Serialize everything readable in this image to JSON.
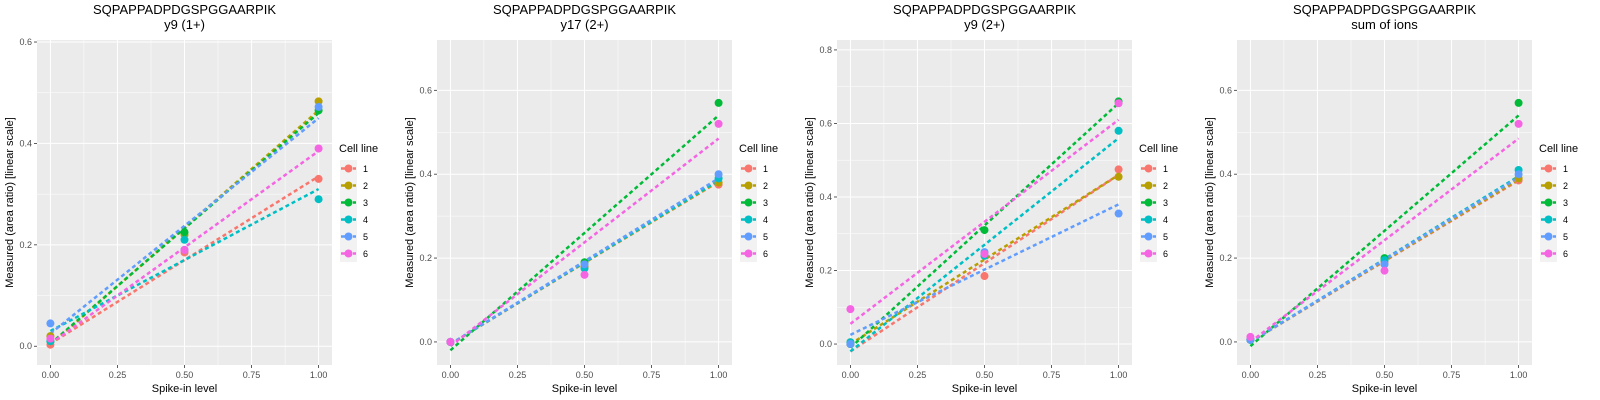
{
  "legend": {
    "title": "Cell line",
    "labels": [
      "1",
      "2",
      "3",
      "4",
      "5",
      "6"
    ]
  },
  "colors": [
    "#F8766D",
    "#B79F00",
    "#00BA38",
    "#00BFC4",
    "#619CFF",
    "#F564E3"
  ],
  "chart_data": [
    {
      "type": "scatter",
      "title": "SQPAPPADPDGSPGGAARPIK",
      "subtitle": "y9 (1+)",
      "xlabel": "Spike-in level",
      "ylabel": "Measured (area ratio) [linear scale]",
      "xlim": [
        -0.05,
        1.05
      ],
      "ylim": [
        -0.037,
        0.604
      ],
      "xticks": [
        0,
        0.25,
        0.5,
        0.75,
        1
      ],
      "xtick_labels": [
        "0.00",
        "0.25",
        "0.50",
        "0.75",
        "1.00"
      ],
      "yticks": [
        0,
        0.2,
        0.4,
        0.6
      ],
      "ytick_labels": [
        "0.0",
        "0.2",
        "0.4",
        "0.6"
      ],
      "grid": true,
      "legend_position": "right",
      "x": [
        0,
        0.5,
        1
      ],
      "series": [
        {
          "name": "1",
          "values": [
            0.003,
            0.185,
            0.33
          ],
          "fit": [
            0.005,
            0.335
          ]
        },
        {
          "name": "2",
          "values": [
            0.02,
            0.22,
            0.483
          ],
          "fit": [
            0.003,
            0.465
          ]
        },
        {
          "name": "3",
          "values": [
            0.01,
            0.225,
            0.465
          ],
          "fit": [
            0.005,
            0.46
          ]
        },
        {
          "name": "4",
          "values": [
            0.01,
            0.21,
            0.29
          ],
          "fit": [
            0.03,
            0.31
          ]
        },
        {
          "name": "5",
          "values": [
            0.045,
            0.19,
            0.472
          ],
          "fit": [
            0.025,
            0.45
          ]
        },
        {
          "name": "6",
          "values": [
            0.015,
            0.19,
            0.39
          ],
          "fit": [
            0.005,
            0.385
          ]
        }
      ]
    },
    {
      "type": "scatter",
      "title": "SQPAPPADPDGSPGGAARPIK",
      "subtitle": "y17 (2+)",
      "xlabel": "Spike-in level",
      "ylabel": "Measured (area ratio) [linear scale]",
      "xlim": [
        -0.05,
        1.05
      ],
      "ylim": [
        -0.055,
        0.72
      ],
      "xticks": [
        0,
        0.25,
        0.5,
        0.75,
        1
      ],
      "xtick_labels": [
        "0.00",
        "0.25",
        "0.50",
        "0.75",
        "1.00"
      ],
      "yticks": [
        0,
        0.2,
        0.4,
        0.6
      ],
      "ytick_labels": [
        "0.0",
        "0.2",
        "0.4",
        "0.6"
      ],
      "grid": true,
      "legend_position": "right",
      "x": [
        0,
        0.5,
        1
      ],
      "series": [
        {
          "name": "1",
          "values": [
            0.0,
            0.18,
            0.375
          ],
          "fit": [
            -0.005,
            0.382
          ]
        },
        {
          "name": "2",
          "values": [
            0.0,
            0.18,
            0.38
          ],
          "fit": [
            -0.005,
            0.383
          ]
        },
        {
          "name": "3",
          "values": [
            0.0,
            0.19,
            0.57
          ],
          "fit": [
            -0.02,
            0.54
          ]
        },
        {
          "name": "4",
          "values": [
            0.0,
            0.175,
            0.39
          ],
          "fit": [
            -0.005,
            0.385
          ]
        },
        {
          "name": "5",
          "values": [
            0.0,
            0.185,
            0.4
          ],
          "fit": [
            -0.005,
            0.39
          ]
        },
        {
          "name": "6",
          "values": [
            0.0,
            0.16,
            0.52
          ],
          "fit": [
            -0.01,
            0.485
          ]
        }
      ]
    },
    {
      "type": "scatter",
      "title": "SQPAPPADPDGSPGGAARPIK",
      "subtitle": "y9 (2+)",
      "xlabel": "Spike-in level",
      "ylabel": "Measured (area ratio) [linear scale]",
      "xlim": [
        -0.05,
        1.05
      ],
      "ylim": [
        -0.057,
        0.827
      ],
      "xticks": [
        0,
        0.25,
        0.5,
        0.75,
        1
      ],
      "xtick_labels": [
        "0.00",
        "0.25",
        "0.50",
        "0.75",
        "1.00"
      ],
      "yticks": [
        0,
        0.2,
        0.4,
        0.6,
        0.8
      ],
      "ytick_labels": [
        "0.0",
        "0.2",
        "0.4",
        "0.6",
        "0.8"
      ],
      "grid": true,
      "legend_position": "right",
      "x": [
        0,
        0.5,
        1
      ],
      "series": [
        {
          "name": "1",
          "values": [
            0.0,
            0.185,
            0.475
          ],
          "fit": [
            -0.02,
            0.46
          ]
        },
        {
          "name": "2",
          "values": [
            0.005,
            0.24,
            0.455
          ],
          "fit": [
            0.0,
            0.46
          ]
        },
        {
          "name": "3",
          "values": [
            0.0,
            0.31,
            0.66
          ],
          "fit": [
            -0.01,
            0.655
          ]
        },
        {
          "name": "4",
          "values": [
            0.005,
            0.24,
            0.58
          ],
          "fit": [
            -0.02,
            0.56
          ]
        },
        {
          "name": "5",
          "values": [
            0.0,
            0.25,
            0.355
          ],
          "fit": [
            0.025,
            0.38
          ]
        },
        {
          "name": "6",
          "values": [
            0.095,
            0.245,
            0.655
          ],
          "fit": [
            0.055,
            0.61
          ]
        }
      ]
    },
    {
      "type": "scatter",
      "title": "SQPAPPADPDGSPGGAARPIK",
      "subtitle": "sum of ions",
      "xlabel": "Spike-in level",
      "ylabel": "Measured (area ratio) [linear scale]",
      "xlim": [
        -0.05,
        1.05
      ],
      "ylim": [
        -0.055,
        0.72
      ],
      "xticks": [
        0,
        0.25,
        0.5,
        0.75,
        1
      ],
      "xtick_labels": [
        "0.00",
        "0.25",
        "0.50",
        "0.75",
        "1.00"
      ],
      "yticks": [
        0,
        0.2,
        0.4,
        0.6
      ],
      "ytick_labels": [
        "0.0",
        "0.2",
        "0.4",
        "0.6"
      ],
      "grid": true,
      "legend_position": "right",
      "x": [
        0,
        0.5,
        1
      ],
      "series": [
        {
          "name": "1",
          "values": [
            0.005,
            0.19,
            0.385
          ],
          "fit": [
            0.0,
            0.385
          ]
        },
        {
          "name": "2",
          "values": [
            0.005,
            0.195,
            0.39
          ],
          "fit": [
            0.0,
            0.388
          ]
        },
        {
          "name": "3",
          "values": [
            0.005,
            0.2,
            0.57
          ],
          "fit": [
            -0.01,
            0.54
          ]
        },
        {
          "name": "4",
          "values": [
            0.005,
            0.195,
            0.41
          ],
          "fit": [
            0.0,
            0.395
          ]
        },
        {
          "name": "5",
          "values": [
            0.005,
            0.185,
            0.4
          ],
          "fit": [
            0.0,
            0.392
          ]
        },
        {
          "name": "6",
          "values": [
            0.012,
            0.17,
            0.52
          ],
          "fit": [
            0.0,
            0.485
          ]
        }
      ]
    }
  ]
}
